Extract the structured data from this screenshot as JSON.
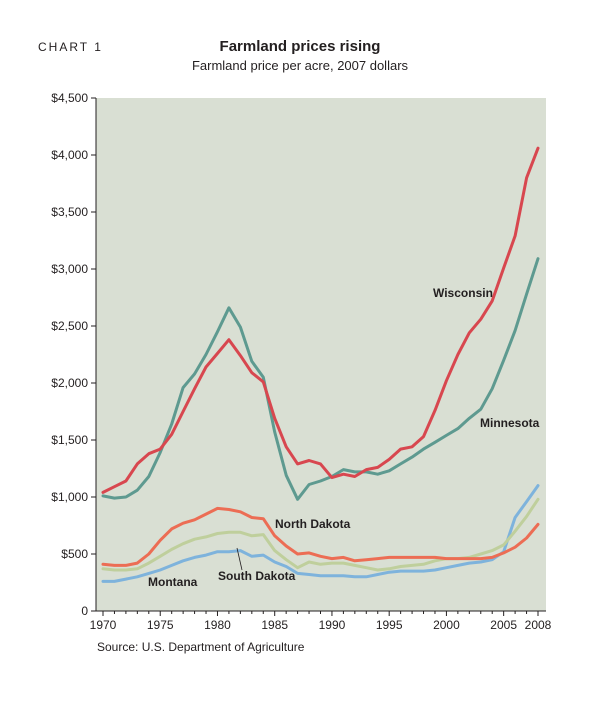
{
  "header": {
    "chart_label": "CHART 1",
    "title": "Farmland prices rising",
    "subtitle": "Farmland price per acre, 2007 dollars"
  },
  "footer": {
    "source": "Source: U.S. Department of Agriculture"
  },
  "colors": {
    "plot_background": "#d9dfd3",
    "axis": "#231f20",
    "wisconsin": "#d8474f",
    "minnesota": "#5e9a90",
    "north_dakota": "#ec6d54",
    "south_dakota": "#bfcf9c",
    "montana": "#7eb3dc"
  },
  "chart_data": {
    "type": "line",
    "title": "Farmland prices rising",
    "subtitle": "Farmland price per acre, 2007 dollars",
    "xlabel": "",
    "ylabel": "",
    "xlim": [
      1970,
      2008
    ],
    "ylim": [
      0,
      4500
    ],
    "grid": false,
    "legend": "direct labels",
    "x_ticks": [
      1970,
      1975,
      1980,
      1985,
      1990,
      1995,
      2000,
      2005,
      2008
    ],
    "x_tick_labels": [
      "1970",
      "1975",
      "1980",
      "1985",
      "1990",
      "1995",
      "2000",
      "2005",
      "2008"
    ],
    "y_ticks": [
      0,
      500,
      1000,
      1500,
      2000,
      2500,
      3000,
      3500,
      4000,
      4500
    ],
    "y_tick_labels": [
      "0",
      "$500",
      "$1,000",
      "$1,500",
      "$2,000",
      "$2,500",
      "$3,000",
      "$3,500",
      "$4,000",
      "$4,500"
    ],
    "x": [
      1970,
      1971,
      1972,
      1973,
      1974,
      1975,
      1976,
      1977,
      1978,
      1979,
      1980,
      1981,
      1982,
      1983,
      1984,
      1985,
      1986,
      1987,
      1988,
      1989,
      1990,
      1991,
      1992,
      1993,
      1994,
      1995,
      1996,
      1997,
      1998,
      1999,
      2000,
      2001,
      2002,
      2003,
      2004,
      2005,
      2006,
      2007,
      2008
    ],
    "series": [
      {
        "name": "Wisconsin",
        "color_key": "wisconsin",
        "values": [
          1040,
          1090,
          1140,
          1290,
          1380,
          1420,
          1550,
          1750,
          1950,
          2140,
          2260,
          2380,
          2240,
          2090,
          2010,
          1690,
          1440,
          1290,
          1320,
          1290,
          1170,
          1200,
          1180,
          1240,
          1260,
          1330,
          1420,
          1440,
          1530,
          1760,
          2020,
          2250,
          2440,
          2560,
          2720,
          3010,
          3290,
          3800,
          4060
        ]
      },
      {
        "name": "Minnesota",
        "color_key": "minnesota",
        "values": [
          1010,
          990,
          1000,
          1060,
          1180,
          1390,
          1640,
          1960,
          2080,
          2250,
          2450,
          2660,
          2490,
          2190,
          2050,
          1570,
          1190,
          980,
          1110,
          1140,
          1180,
          1240,
          1220,
          1220,
          1200,
          1230,
          1290,
          1350,
          1420,
          1480,
          1540,
          1600,
          1690,
          1770,
          1950,
          2200,
          2460,
          2780,
          3090
        ]
      },
      {
        "name": "North Dakota",
        "color_key": "north_dakota",
        "values": [
          410,
          400,
          400,
          420,
          500,
          620,
          720,
          770,
          800,
          850,
          900,
          890,
          870,
          820,
          810,
          660,
          570,
          500,
          510,
          480,
          460,
          470,
          440,
          450,
          460,
          470,
          470,
          470,
          470,
          470,
          460,
          460,
          460,
          460,
          470,
          510,
          560,
          640,
          760
        ]
      },
      {
        "name": "South Dakota",
        "color_key": "south_dakota",
        "values": [
          370,
          360,
          360,
          370,
          420,
          480,
          540,
          590,
          630,
          650,
          680,
          690,
          690,
          660,
          670,
          530,
          450,
          380,
          430,
          410,
          420,
          420,
          400,
          380,
          360,
          370,
          390,
          400,
          410,
          440,
          460,
          460,
          470,
          500,
          530,
          580,
          700,
          830,
          980
        ]
      },
      {
        "name": "Montana",
        "color_key": "montana",
        "values": [
          260,
          260,
          280,
          300,
          330,
          360,
          400,
          440,
          470,
          490,
          520,
          520,
          530,
          480,
          490,
          430,
          390,
          330,
          320,
          310,
          310,
          310,
          300,
          300,
          320,
          340,
          350,
          350,
          350,
          360,
          380,
          400,
          420,
          430,
          450,
          520,
          820,
          960,
          1100
        ]
      }
    ],
    "annotations": [
      {
        "text": "Wisconsin",
        "series": "Wisconsin"
      },
      {
        "text": "Minnesota",
        "series": "Minnesota"
      },
      {
        "text": "North Dakota",
        "series": "North Dakota"
      },
      {
        "text": "South Dakota",
        "series": "South Dakota"
      },
      {
        "text": "Montana",
        "series": "Montana"
      }
    ]
  }
}
